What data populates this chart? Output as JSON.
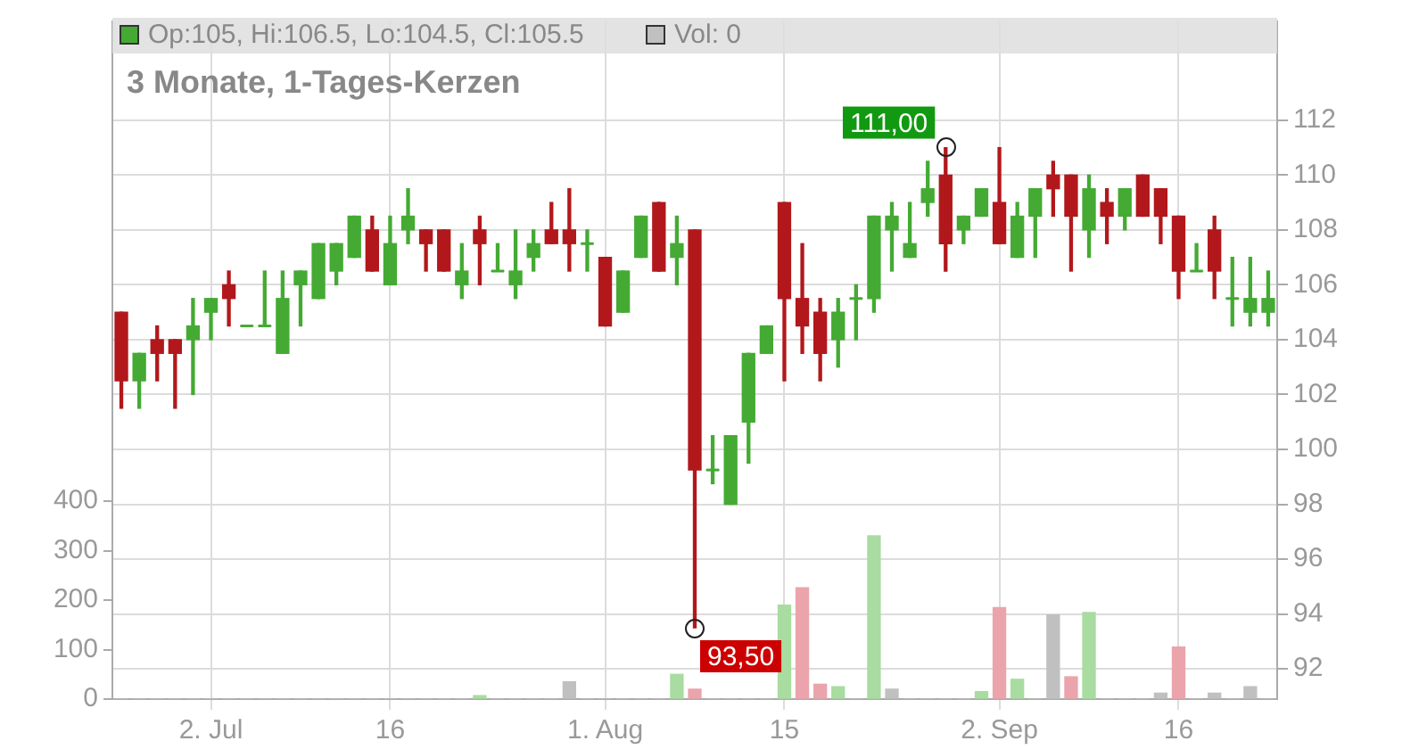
{
  "chart_data": {
    "type": "candlestick",
    "title": "3 Monate, 1-Tages-Kerzen",
    "categories": [
      null,
      null,
      null,
      null,
      null,
      "2. Jul",
      null,
      null,
      null,
      null,
      null,
      null,
      null,
      null,
      null,
      "16",
      null,
      null,
      null,
      null,
      null,
      null,
      null,
      null,
      null,
      null,
      null,
      "1. Aug",
      null,
      null,
      null,
      null,
      null,
      null,
      null,
      null,
      null,
      "15",
      null,
      null,
      null,
      null,
      null,
      null,
      null,
      null,
      null,
      null,
      null,
      "2. Sep",
      null,
      null,
      null,
      null,
      null,
      null,
      null,
      null,
      null,
      "16",
      null,
      null,
      null,
      null,
      null
    ],
    "ohlc": [
      [
        105,
        105,
        101.5,
        102.5
      ],
      [
        102.5,
        103.5,
        101.5,
        103.5
      ],
      [
        104,
        104.5,
        102.5,
        103.5
      ],
      [
        104,
        104,
        101.5,
        103.5
      ],
      [
        104,
        105.5,
        102,
        104.5
      ],
      [
        105,
        105.5,
        104,
        105.5
      ],
      [
        106,
        106.5,
        104.5,
        105.5
      ],
      [
        104.5,
        104.5,
        104.5,
        104.5
      ],
      [
        104.5,
        106.5,
        104.5,
        104.5
      ],
      [
        103.5,
        106.5,
        103.5,
        105.5
      ],
      [
        106,
        106.5,
        104.5,
        106.5
      ],
      [
        105.5,
        107.5,
        105.5,
        107.5
      ],
      [
        106.5,
        107.5,
        106,
        107.5
      ],
      [
        107,
        108.5,
        107,
        108.5
      ],
      [
        108,
        108.5,
        106.5,
        106.5
      ],
      [
        106,
        108.5,
        106,
        107.5
      ],
      [
        108,
        109.5,
        107.5,
        108.5
      ],
      [
        108,
        108,
        106.5,
        107.5
      ],
      [
        108,
        108,
        106.5,
        106.5
      ],
      [
        106,
        107.5,
        105.5,
        106.5
      ],
      [
        108,
        108.5,
        106,
        107.5
      ],
      [
        106.5,
        107.5,
        106.5,
        106.5
      ],
      [
        106,
        108,
        105.5,
        106.5
      ],
      [
        107,
        108,
        106.5,
        107.5
      ],
      [
        108,
        109,
        107.5,
        107.5
      ],
      [
        108,
        109.5,
        106.5,
        107.5
      ],
      [
        107.5,
        108,
        106.5,
        107.5
      ],
      [
        107,
        107,
        104.5,
        104.5
      ],
      [
        105,
        106.5,
        105,
        106.5
      ],
      [
        107,
        108.5,
        107,
        108.5
      ],
      [
        109,
        109,
        106.5,
        106.5
      ],
      [
        107,
        108.5,
        106,
        107.5
      ],
      [
        108,
        108,
        93.5,
        99.25
      ],
      [
        99.25,
        100.5,
        98.75,
        99.25
      ],
      [
        98,
        100.5,
        98,
        100.5
      ],
      [
        101,
        103.5,
        99.5,
        103.5
      ],
      [
        103.5,
        104.5,
        103.5,
        104.5
      ],
      [
        109,
        109,
        102.5,
        105.5
      ],
      [
        105.5,
        107.5,
        103.5,
        104.5
      ],
      [
        105,
        105.5,
        102.5,
        103.5
      ],
      [
        104,
        105.5,
        103,
        105
      ],
      [
        105.5,
        106,
        104,
        105.5
      ],
      [
        105.5,
        108.5,
        105,
        108.5
      ],
      [
        108,
        109,
        106.5,
        108.5
      ],
      [
        107,
        109,
        107,
        107.5
      ],
      [
        109,
        110.5,
        108.5,
        109.5
      ],
      [
        110,
        111,
        106.5,
        107.5
      ],
      [
        108,
        108.5,
        107.5,
        108.5
      ],
      [
        108.5,
        109.5,
        108.5,
        109.5
      ],
      [
        109,
        111,
        107.5,
        107.5
      ],
      [
        107,
        109,
        107,
        108.5
      ],
      [
        108.5,
        109.5,
        107,
        109.5
      ],
      [
        110,
        110.5,
        108.5,
        109.5
      ],
      [
        110,
        110,
        106.5,
        108.5
      ],
      [
        108,
        110,
        107,
        109.5
      ],
      [
        109,
        109.5,
        107.5,
        108.5
      ],
      [
        108.5,
        109.5,
        108,
        109.5
      ],
      [
        110,
        110,
        108.5,
        108.5
      ],
      [
        109.5,
        109.5,
        107.5,
        108.5
      ],
      [
        108.5,
        108.5,
        105.5,
        106.5
      ],
      [
        106.5,
        107.5,
        106.5,
        106.5
      ],
      [
        108,
        108.5,
        105.5,
        106.5
      ],
      [
        105.5,
        107,
        104.5,
        105.5
      ],
      [
        105,
        107,
        104.5,
        105.5
      ],
      [
        105,
        106.5,
        104.5,
        105.5
      ]
    ],
    "colors": [
      "#b2181b",
      "#44aa33",
      "#b2181b",
      "#b2181b",
      "#44aa33",
      "#44aa33",
      "#b2181b",
      "#44aa33",
      "#44aa33",
      "#44aa33",
      "#44aa33",
      "#44aa33",
      "#44aa33",
      "#44aa33",
      "#b2181b",
      "#44aa33",
      "#44aa33",
      "#b2181b",
      "#b2181b",
      "#44aa33",
      "#b2181b",
      "#44aa33",
      "#44aa33",
      "#44aa33",
      "#b2181b",
      "#b2181b",
      "#44aa33",
      "#b2181b",
      "#44aa33",
      "#44aa33",
      "#b2181b",
      "#44aa33",
      "#b2181b",
      "#44aa33",
      "#44aa33",
      "#44aa33",
      "#44aa33",
      "#b2181b",
      "#b2181b",
      "#b2181b",
      "#44aa33",
      "#44aa33",
      "#44aa33",
      "#44aa33",
      "#44aa33",
      "#44aa33",
      "#b2181b",
      "#44aa33",
      "#44aa33",
      "#b2181b",
      "#44aa33",
      "#44aa33",
      "#b2181b",
      "#b2181b",
      "#44aa33",
      "#b2181b",
      "#44aa33",
      "#b2181b",
      "#b2181b",
      "#b2181b",
      "#44aa33",
      "#b2181b",
      "#44aa33",
      "#44aa33",
      "#44aa33"
    ],
    "series": [
      {
        "type": "bar",
        "axis": "y2",
        "values": [
          0,
          0,
          0,
          0,
          0,
          0,
          0,
          0,
          0,
          0,
          0,
          0,
          0,
          0,
          0,
          0,
          0,
          0,
          0,
          0,
          7,
          0,
          0,
          0,
          0,
          35,
          0,
          0,
          0,
          0,
          0,
          50,
          20,
          0,
          0,
          0,
          0,
          190,
          225,
          30,
          25,
          0,
          330,
          20,
          0,
          0,
          0,
          0,
          15,
          185,
          40,
          0,
          170,
          45,
          175,
          0,
          0,
          0,
          12,
          105,
          0,
          12,
          0,
          25,
          0
        ],
        "colors": [
          "#c0c0c0",
          "#c0c0c0",
          "#c0c0c0",
          "#c0c0c0",
          "#c0c0c0",
          "#c0c0c0",
          "#c0c0c0",
          "#c0c0c0",
          "#c0c0c0",
          "#c0c0c0",
          "#c0c0c0",
          "#c0c0c0",
          "#c0c0c0",
          "#c0c0c0",
          "#c0c0c0",
          "#c0c0c0",
          "#c0c0c0",
          "#c0c0c0",
          "#c0c0c0",
          "#c0c0c0",
          "#a8dca0",
          "#c0c0c0",
          "#c0c0c0",
          "#c0c0c0",
          "#c0c0c0",
          "#c0c0c0",
          "#c0c0c0",
          "#c0c0c0",
          "#c0c0c0",
          "#c0c0c0",
          "#c0c0c0",
          "#a8dca0",
          "#eba4ab",
          "#c0c0c0",
          "#c0c0c0",
          "#c0c0c0",
          "#c0c0c0",
          "#a8dca0",
          "#eba4ab",
          "#eba4ab",
          "#a8dca0",
          "#c0c0c0",
          "#a8dca0",
          "#c0c0c0",
          "#c0c0c0",
          "#c0c0c0",
          "#c0c0c0",
          "#c0c0c0",
          "#a8dca0",
          "#eba4ab",
          "#a8dca0",
          "#c0c0c0",
          "#c0c0c0",
          "#eba4ab",
          "#a8dca0",
          "#c0c0c0",
          "#c0c0c0",
          "#c0c0c0",
          "#c0c0c0",
          "#eba4ab",
          "#c0c0c0",
          "#c0c0c0",
          "#c0c0c0",
          "#c0c0c0",
          "#c0c0c0"
        ]
      }
    ],
    "ylim": [
      90.9,
      115.6
    ],
    "yticks": [
      92,
      94,
      96,
      98,
      100,
      102,
      104,
      106,
      108,
      110,
      112
    ],
    "y2lim": [
      0,
      1370
    ],
    "y2ticks": [
      0,
      100,
      200,
      300,
      400
    ],
    "grid": true,
    "annotations": [
      "Op:105, Hi:106.5, Lo:104.5, Cl:105.5",
      "Vol: 0",
      "111,00",
      "93,50"
    ]
  }
}
